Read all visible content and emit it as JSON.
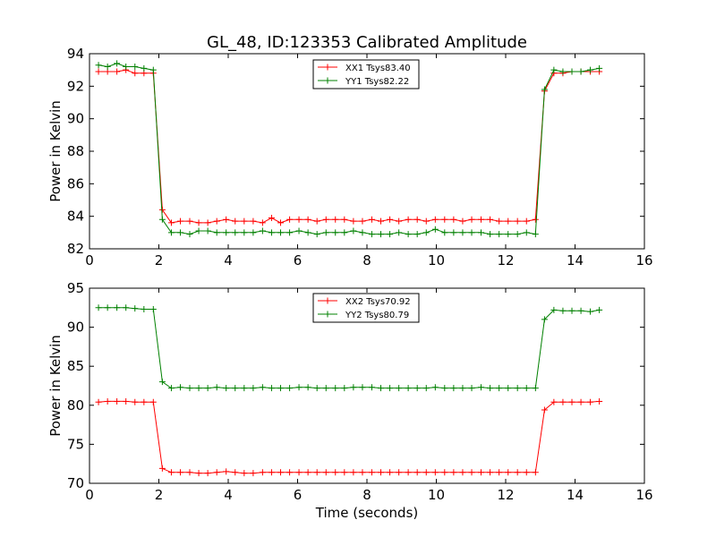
{
  "figure": {
    "title": "GL_48, ID:123353 Calibrated Amplitude",
    "xlabel": "Time (seconds)"
  },
  "colors": {
    "xx": "#ff0000",
    "yy": "#008000",
    "axis": "#000000"
  },
  "chart_data": [
    {
      "type": "line",
      "title": "GL_48, ID:123353 Calibrated Amplitude",
      "xlabel": "",
      "ylabel": "Power in Kelvin",
      "xlim": [
        0,
        16
      ],
      "ylim": [
        82,
        94
      ],
      "xticks": [
        0,
        2,
        4,
        6,
        8,
        10,
        12,
        14,
        16
      ],
      "yticks": [
        82,
        84,
        86,
        88,
        90,
        92,
        94
      ],
      "grid": false,
      "legend_position": "top-center",
      "x": [
        0.26,
        0.52,
        0.79,
        1.05,
        1.31,
        1.57,
        1.84,
        2.1,
        2.36,
        2.62,
        2.89,
        3.15,
        3.41,
        3.67,
        3.94,
        4.2,
        4.46,
        4.72,
        4.99,
        5.25,
        5.51,
        5.77,
        6.04,
        6.3,
        6.56,
        6.82,
        7.09,
        7.35,
        7.61,
        7.87,
        8.14,
        8.4,
        8.66,
        8.92,
        9.19,
        9.45,
        9.71,
        9.97,
        10.24,
        10.5,
        10.76,
        11.02,
        11.29,
        11.55,
        11.81,
        12.07,
        12.34,
        12.6,
        12.86,
        13.12,
        13.39,
        13.65,
        13.91,
        14.17,
        14.44,
        14.7
      ],
      "series": [
        {
          "name": "XX1 Tsys83.40",
          "color": "#ff0000",
          "values": [
            92.9,
            92.9,
            92.9,
            93.0,
            92.8,
            92.8,
            92.8,
            84.4,
            83.6,
            83.7,
            83.7,
            83.6,
            83.6,
            83.7,
            83.8,
            83.7,
            83.7,
            83.7,
            83.6,
            83.9,
            83.6,
            83.8,
            83.8,
            83.8,
            83.7,
            83.8,
            83.8,
            83.8,
            83.7,
            83.7,
            83.8,
            83.7,
            83.8,
            83.7,
            83.8,
            83.8,
            83.7,
            83.8,
            83.8,
            83.8,
            83.7,
            83.8,
            83.8,
            83.8,
            83.7,
            83.7,
            83.7,
            83.7,
            83.8,
            91.7,
            92.8,
            92.8,
            92.9,
            92.9,
            92.9,
            92.9
          ]
        },
        {
          "name": "YY1 Tsys82.22",
          "color": "#008000",
          "values": [
            93.3,
            93.2,
            93.4,
            93.2,
            93.2,
            93.1,
            93.0,
            83.8,
            83.0,
            83.0,
            82.9,
            83.1,
            83.1,
            83.0,
            83.0,
            83.0,
            83.0,
            83.0,
            83.1,
            83.0,
            83.0,
            83.0,
            83.1,
            83.0,
            82.9,
            83.0,
            83.0,
            83.0,
            83.1,
            83.0,
            82.9,
            82.9,
            82.9,
            83.0,
            82.9,
            82.9,
            83.0,
            83.2,
            83.0,
            83.0,
            83.0,
            83.0,
            83.0,
            82.9,
            82.9,
            82.9,
            82.9,
            83.0,
            82.9,
            91.8,
            93.0,
            92.9,
            92.9,
            92.9,
            93.0,
            93.1
          ]
        }
      ]
    },
    {
      "type": "line",
      "title": "",
      "xlabel": "Time (seconds)",
      "ylabel": "Power in Kelvin",
      "xlim": [
        0,
        16
      ],
      "ylim": [
        70,
        95
      ],
      "xticks": [
        0,
        2,
        4,
        6,
        8,
        10,
        12,
        14,
        16
      ],
      "yticks": [
        70,
        75,
        80,
        85,
        90,
        95
      ],
      "grid": false,
      "legend_position": "top-center",
      "x": [
        0.26,
        0.52,
        0.79,
        1.05,
        1.31,
        1.57,
        1.84,
        2.1,
        2.36,
        2.62,
        2.89,
        3.15,
        3.41,
        3.67,
        3.94,
        4.2,
        4.46,
        4.72,
        4.99,
        5.25,
        5.51,
        5.77,
        6.04,
        6.3,
        6.56,
        6.82,
        7.09,
        7.35,
        7.61,
        7.87,
        8.14,
        8.4,
        8.66,
        8.92,
        9.19,
        9.45,
        9.71,
        9.97,
        10.24,
        10.5,
        10.76,
        11.02,
        11.29,
        11.55,
        11.81,
        12.07,
        12.34,
        12.6,
        12.86,
        13.12,
        13.39,
        13.65,
        13.91,
        14.17,
        14.44,
        14.7
      ],
      "series": [
        {
          "name": "XX2 Tsys70.92",
          "color": "#ff0000",
          "values": [
            80.4,
            80.5,
            80.5,
            80.5,
            80.4,
            80.4,
            80.4,
            71.9,
            71.4,
            71.4,
            71.4,
            71.3,
            71.3,
            71.4,
            71.5,
            71.4,
            71.3,
            71.3,
            71.4,
            71.4,
            71.4,
            71.4,
            71.4,
            71.4,
            71.4,
            71.4,
            71.4,
            71.4,
            71.4,
            71.4,
            71.4,
            71.4,
            71.4,
            71.4,
            71.4,
            71.4,
            71.4,
            71.4,
            71.4,
            71.4,
            71.4,
            71.4,
            71.4,
            71.4,
            71.4,
            71.4,
            71.4,
            71.4,
            71.4,
            79.4,
            80.4,
            80.4,
            80.4,
            80.4,
            80.4,
            80.5
          ]
        },
        {
          "name": "YY2 Tsys80.79",
          "color": "#008000",
          "values": [
            92.5,
            92.5,
            92.5,
            92.5,
            92.4,
            92.3,
            92.3,
            83.0,
            82.2,
            82.3,
            82.2,
            82.2,
            82.2,
            82.3,
            82.2,
            82.2,
            82.2,
            82.2,
            82.3,
            82.2,
            82.2,
            82.2,
            82.3,
            82.3,
            82.2,
            82.2,
            82.2,
            82.2,
            82.3,
            82.3,
            82.3,
            82.2,
            82.2,
            82.2,
            82.2,
            82.2,
            82.2,
            82.3,
            82.2,
            82.2,
            82.2,
            82.2,
            82.3,
            82.2,
            82.2,
            82.2,
            82.2,
            82.2,
            82.2,
            91.0,
            92.2,
            92.1,
            92.1,
            92.1,
            92.0,
            92.2
          ]
        }
      ]
    }
  ]
}
